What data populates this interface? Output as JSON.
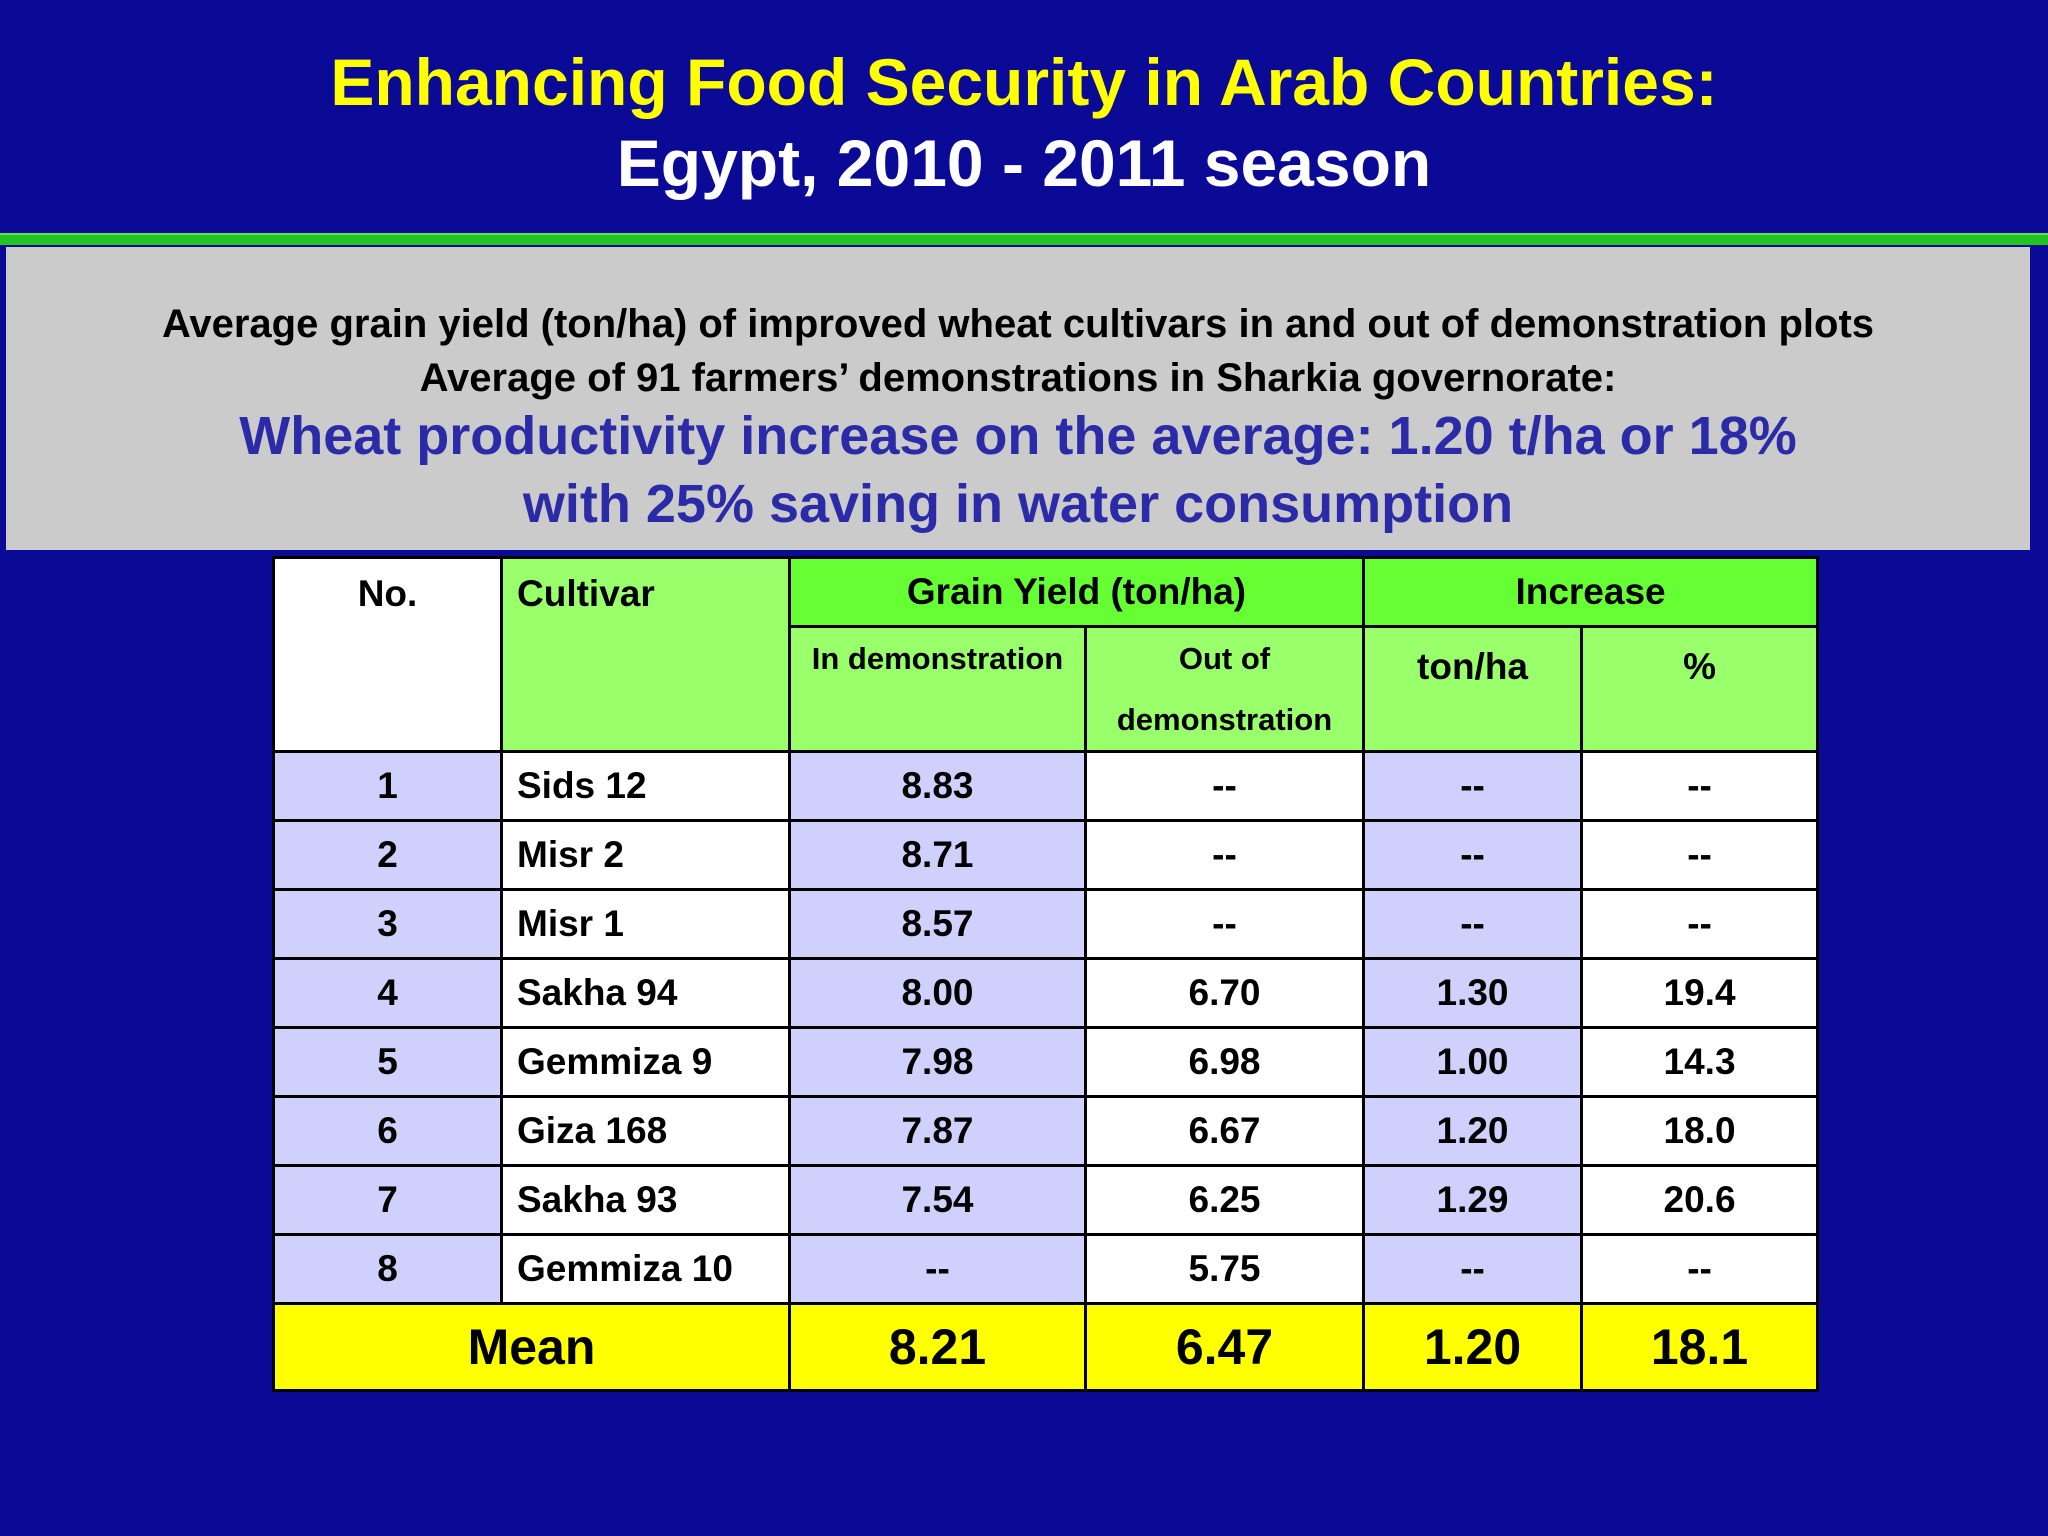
{
  "header": {
    "title_line1": "Enhancing Food Security in Arab Countries:",
    "title_line2": "Egypt, 2010 - 2011 season"
  },
  "summary": {
    "line1": "Average grain yield (ton/ha) of  improved wheat cultivars in and out of demonstration plots",
    "line2": "Average of 91 farmers’ demonstrations in Sharkia governorate:",
    "highlight_line1": "Wheat productivity increase on the average: 1.20 t/ha or 18%",
    "highlight_line2": "with 25% saving in water consumption"
  },
  "table": {
    "headers": {
      "no": "No.",
      "cultivar": "Cultivar",
      "grain_yield": "Grain Yield (ton/ha)",
      "increase": "Increase",
      "in_demo": "In demonstration",
      "out_demo": "Out of demonstration",
      "ton_ha": "ton/ha",
      "percent": "%"
    },
    "rows": [
      {
        "no": "1",
        "cultivar": "Sids 12",
        "in_demo": "8.83",
        "out_demo": "--",
        "inc_ton": "--",
        "inc_pct": "--"
      },
      {
        "no": "2",
        "cultivar": "Misr 2",
        "in_demo": "8.71",
        "out_demo": "--",
        "inc_ton": "--",
        "inc_pct": "--"
      },
      {
        "no": "3",
        "cultivar": "Misr 1",
        "in_demo": "8.57",
        "out_demo": "--",
        "inc_ton": "--",
        "inc_pct": "--"
      },
      {
        "no": "4",
        "cultivar": "Sakha 94",
        "in_demo": "8.00",
        "out_demo": "6.70",
        "inc_ton": "1.30",
        "inc_pct": "19.4"
      },
      {
        "no": "5",
        "cultivar": "Gemmiza 9",
        "in_demo": "7.98",
        "out_demo": "6.98",
        "inc_ton": "1.00",
        "inc_pct": "14.3"
      },
      {
        "no": "6",
        "cultivar": "Giza 168",
        "in_demo": "7.87",
        "out_demo": "6.67",
        "inc_ton": "1.20",
        "inc_pct": "18.0"
      },
      {
        "no": "7",
        "cultivar": "Sakha 93",
        "in_demo": "7.54",
        "out_demo": "6.25",
        "inc_ton": "1.29",
        "inc_pct": "20.6"
      },
      {
        "no": "8",
        "cultivar": "Gemmiza 10",
        "in_demo": "--",
        "out_demo": "5.75",
        "inc_ton": "--",
        "inc_pct": "--"
      }
    ],
    "mean": {
      "label": "Mean",
      "in_demo": "8.21",
      "out_demo": "6.47",
      "inc_ton": "1.20",
      "inc_pct": "18.1"
    }
  },
  "colors": {
    "background": "#0a0a96",
    "title_primary": "#ffff00",
    "title_secondary": "#ffffff",
    "divider": "#22c322",
    "info_box": "#cbcbcb",
    "highlight_text": "#2b2ba8",
    "header_green": "#66ff33",
    "header_light_green": "#99ff6b",
    "row_lavender": "#cfd0fb",
    "mean_row": "#ffff00"
  }
}
